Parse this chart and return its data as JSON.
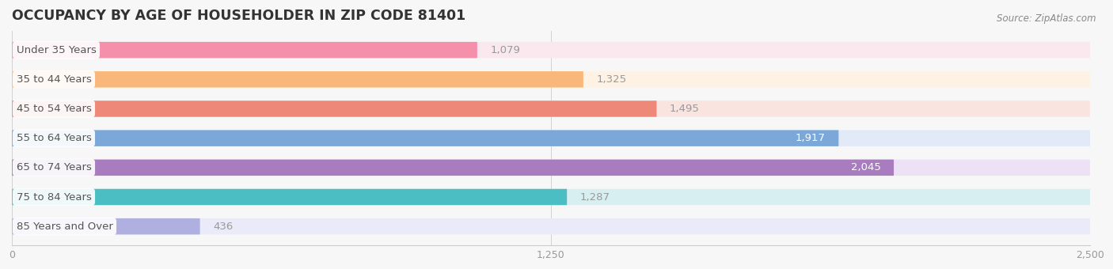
{
  "title": "OCCUPANCY BY AGE OF HOUSEHOLDER IN ZIP CODE 81401",
  "source": "Source: ZipAtlas.com",
  "categories": [
    "Under 35 Years",
    "35 to 44 Years",
    "45 to 54 Years",
    "55 to 64 Years",
    "65 to 74 Years",
    "75 to 84 Years",
    "85 Years and Over"
  ],
  "values": [
    1079,
    1325,
    1495,
    1917,
    2045,
    1287,
    436
  ],
  "bar_colors": [
    "#F590AA",
    "#F9B87A",
    "#EE8878",
    "#7BA8D8",
    "#A87CBF",
    "#4BBEC4",
    "#B0B0E0"
  ],
  "bar_bg_colors": [
    "#FAE8EF",
    "#FEF2E4",
    "#FAE4E0",
    "#E2EAF8",
    "#EDE2F5",
    "#D8EFF2",
    "#EAEAF8"
  ],
  "value_inside_color": "white",
  "value_outside_color": "#999999",
  "value_inside_threshold": 1700,
  "xlim": [
    0,
    2500
  ],
  "xticks": [
    0,
    1250,
    2500
  ],
  "background_color": "#f7f7f7",
  "title_fontsize": 12.5,
  "label_fontsize": 9.5,
  "value_fontsize": 9.5,
  "bar_height": 0.55,
  "fig_width": 14.06,
  "fig_height": 3.4
}
